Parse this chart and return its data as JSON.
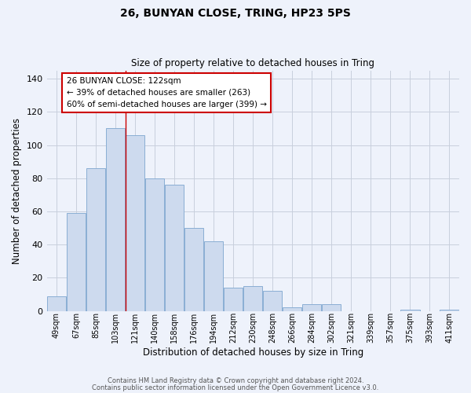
{
  "title_main": "26, BUNYAN CLOSE, TRING, HP23 5PS",
  "title_sub": "Size of property relative to detached houses in Tring",
  "xlabel": "Distribution of detached houses by size in Tring",
  "ylabel": "Number of detached properties",
  "bar_color": "#cddaee",
  "bar_edge_color": "#8aaed4",
  "background_color": "#eef2fb",
  "grid_color": "#c8cfdd",
  "categories": [
    "49sqm",
    "67sqm",
    "85sqm",
    "103sqm",
    "121sqm",
    "140sqm",
    "158sqm",
    "176sqm",
    "194sqm",
    "212sqm",
    "230sqm",
    "248sqm",
    "266sqm",
    "284sqm",
    "302sqm",
    "321sqm",
    "339sqm",
    "357sqm",
    "375sqm",
    "393sqm",
    "411sqm"
  ],
  "values": [
    9,
    59,
    86,
    110,
    106,
    80,
    76,
    50,
    42,
    14,
    15,
    12,
    2,
    4,
    4,
    0,
    0,
    0,
    1,
    0,
    1
  ],
  "ylim": [
    0,
    145
  ],
  "yticks": [
    0,
    20,
    40,
    60,
    80,
    100,
    120,
    140
  ],
  "property_line_x": 3.5,
  "annotation_text": "26 BUNYAN CLOSE: 122sqm\n← 39% of detached houses are smaller (263)\n60% of semi-detached houses are larger (399) →",
  "annotation_box_color": "#ffffff",
  "annotation_box_edgecolor": "#cc0000",
  "property_line_color": "#cc0000",
  "footer_line1": "Contains HM Land Registry data © Crown copyright and database right 2024.",
  "footer_line2": "Contains public sector information licensed under the Open Government Licence v3.0."
}
